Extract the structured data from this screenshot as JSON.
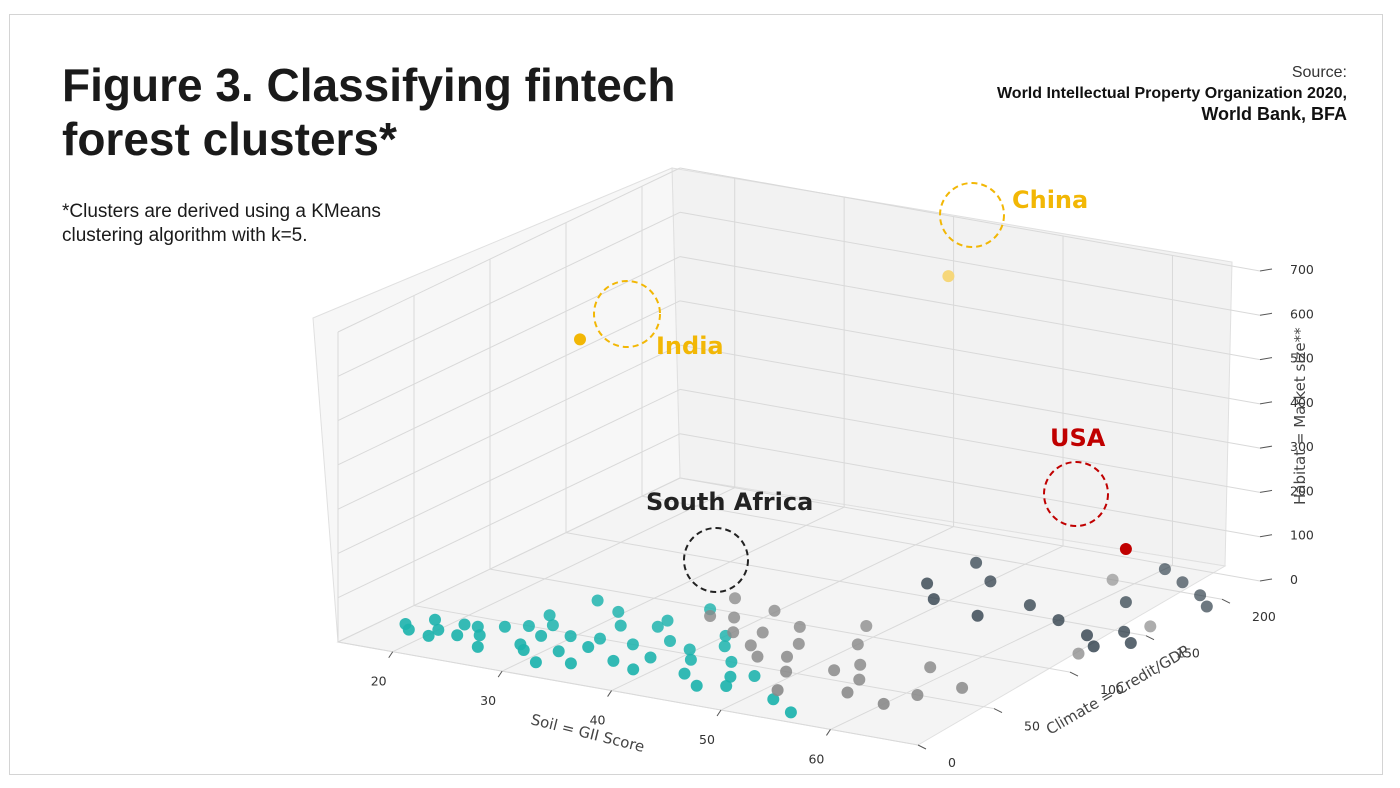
{
  "title_line1": "Figure 3. Classifying fintech",
  "title_line2": "forest clusters*",
  "source": {
    "label": "Source:",
    "line1": "World Intellectual Property Organization 2020,",
    "line2": "World Bank, BFA"
  },
  "note": {
    "line1": "*Clusters are derived using a KMeans",
    "line2": "clustering algorithm with k=5."
  },
  "colors": {
    "teal": "#1db3ad",
    "gray": "#8a8a8a",
    "navy": "#1e2f3c",
    "gold": "#f2b705",
    "red": "#c00000"
  },
  "chart_data": {
    "type": "scatter",
    "projection": "3d",
    "xlabel": "Soil = GII Score",
    "ylabel": "Climate = Credit/GDP",
    "zlabel": "Habitat = Market size**",
    "x_ticks": [
      "20",
      "30",
      "40",
      "50",
      "60"
    ],
    "y_ticks": [
      "0",
      "50",
      "100",
      "150",
      "200"
    ],
    "z_ticks": [
      "0",
      "100",
      "200",
      "300",
      "400",
      "500",
      "600",
      "700"
    ],
    "xlim": [
      15,
      68
    ],
    "ylim": [
      0,
      225
    ],
    "zlim": [
      0,
      700
    ],
    "grid": true,
    "clusters": [
      {
        "color": "#1db3ad",
        "points": [
          [
            17,
            30,
            0
          ],
          [
            18,
            25,
            0
          ],
          [
            19,
            35,
            10
          ],
          [
            20,
            30,
            0
          ],
          [
            21,
            40,
            0
          ],
          [
            20.5,
            20,
            5
          ],
          [
            22,
            28,
            0
          ],
          [
            22.5,
            38,
            5
          ],
          [
            23.5,
            32,
            0
          ],
          [
            24,
            45,
            0
          ],
          [
            25,
            20,
            0
          ],
          [
            25.5,
            50,
            0
          ],
          [
            26,
            60,
            10
          ],
          [
            27,
            55,
            0
          ],
          [
            27.5,
            30,
            0
          ],
          [
            28,
            40,
            5
          ],
          [
            28.5,
            25,
            0
          ],
          [
            29,
            70,
            40
          ],
          [
            29.5,
            80,
            0
          ],
          [
            30,
            45,
            5
          ],
          [
            31,
            30,
            0
          ],
          [
            31,
            15,
            0
          ],
          [
            32,
            50,
            0
          ],
          [
            32.5,
            60,
            15
          ],
          [
            33,
            35,
            10
          ],
          [
            33.5,
            20,
            0
          ],
          [
            34,
            80,
            0
          ],
          [
            34.5,
            70,
            5
          ],
          [
            35,
            50,
            0
          ],
          [
            36,
            30,
            0
          ],
          [
            36.5,
            90,
            20
          ],
          [
            37,
            60,
            0
          ],
          [
            38,
            40,
            0
          ],
          [
            38.5,
            25,
            0
          ],
          [
            39.5,
            55,
            0
          ],
          [
            40,
            75,
            0
          ],
          [
            41,
            45,
            0
          ],
          [
            42,
            60,
            10
          ],
          [
            42.5,
            30,
            0
          ],
          [
            44,
            50,
            0
          ],
          [
            45,
            20,
            0
          ],
          [
            46,
            35,
            0
          ],
          [
            47,
            25,
            0
          ],
          [
            47.5,
            40,
            0
          ],
          [
            52,
            20,
            0
          ],
          [
            55,
            10,
            0
          ]
        ]
      },
      {
        "color": "#8a8a8a",
        "points": [
          [
            36,
            110,
            10
          ],
          [
            36.5,
            90,
            5
          ],
          [
            38,
            95,
            0
          ],
          [
            40,
            80,
            0
          ],
          [
            41,
            100,
            20
          ],
          [
            42,
            85,
            0
          ],
          [
            43,
            70,
            0
          ],
          [
            44,
            95,
            5
          ],
          [
            45,
            60,
            0
          ],
          [
            46,
            80,
            0
          ],
          [
            47,
            65,
            0
          ],
          [
            48,
            110,
            0
          ],
          [
            49,
            50,
            0
          ],
          [
            50,
            90,
            0
          ],
          [
            51,
            30,
            0
          ],
          [
            52,
            60,
            0
          ],
          [
            53,
            70,
            0
          ],
          [
            55,
            55,
            0
          ],
          [
            56,
            40,
            0
          ],
          [
            58,
            80,
            0
          ],
          [
            60,
            35,
            0
          ],
          [
            61,
            50,
            0
          ],
          [
            63,
            65,
            0
          ],
          [
            58,
            200,
            0
          ],
          [
            66,
            120,
            0
          ],
          [
            67,
            160,
            0
          ]
        ]
      },
      {
        "color": "#1e2f3c",
        "points": [
          [
            48,
            150,
            30
          ],
          [
            50,
            140,
            20
          ],
          [
            49,
            175,
            40
          ],
          [
            51,
            170,
            15
          ],
          [
            54,
            140,
            0
          ],
          [
            56,
            160,
            0
          ],
          [
            60,
            150,
            0
          ],
          [
            62,
            180,
            0
          ],
          [
            64,
            140,
            0
          ],
          [
            66,
            130,
            0
          ],
          [
            60,
            220,
            0
          ],
          [
            63,
            210,
            0
          ],
          [
            66,
            150,
            0
          ],
          [
            68,
            140,
            0
          ],
          [
            66,
            200,
            0
          ],
          [
            68,
            190,
            0
          ]
        ]
      },
      {
        "color": "#f2b705",
        "label": "India",
        "points": [
          [
            26,
            80,
            600
          ]
        ]
      },
      {
        "color": "#f6d77a",
        "label": "China",
        "points": [
          [
            43,
            200,
            620
          ]
        ]
      },
      {
        "color": "#c00000",
        "label": "USA",
        "points": [
          [
            62,
            180,
            120
          ]
        ]
      }
    ],
    "annotations": [
      {
        "text": "China",
        "color": "#f2b705"
      },
      {
        "text": "India",
        "color": "#f2b705"
      },
      {
        "text": "USA",
        "color": "#c00000"
      },
      {
        "text": "South Africa",
        "color": "#222222"
      }
    ]
  }
}
